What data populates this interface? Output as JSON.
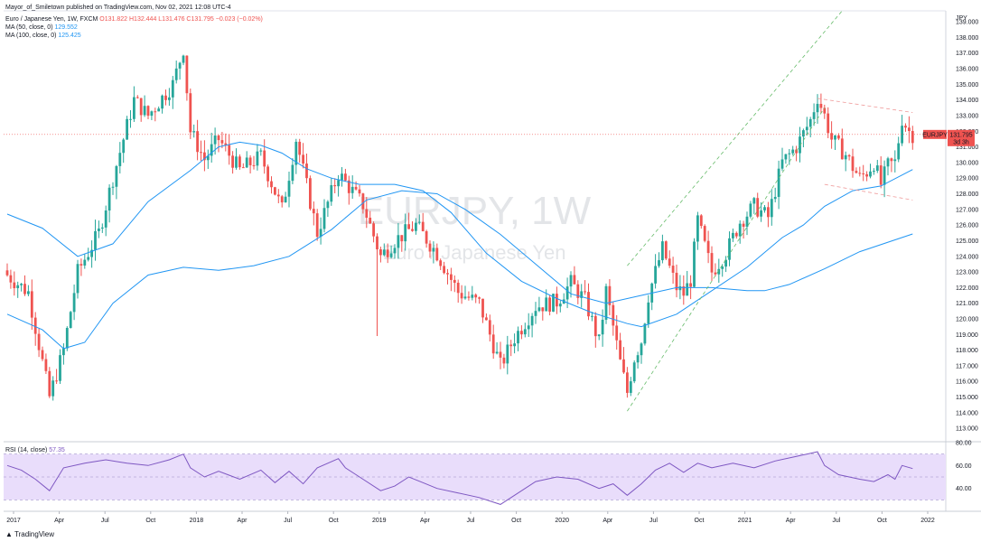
{
  "header": {
    "published": "Mayor_of_Smiletown published on TradingView.com, Nov 02, 2021 12:08 UTC-4",
    "symbol": "Euro / Japanese Yen, 1W, FXCM",
    "ohlc": "O131.822 H132.444 L131.476 C131.795 −0.023 (−0.02%)",
    "ma50_label": "MA (50, close, 0)",
    "ma50_value": "129.552",
    "ma100_label": "MA (100, close, 0)",
    "ma100_value": "125.425",
    "rsi_label": "RSI (14, close)",
    "rsi_value": "57.35"
  },
  "currency_label": "JPY",
  "watermark": {
    "symbol": "EURJPY, 1W",
    "name": "Euro / Japanese Yen"
  },
  "price_tag": {
    "symbol": "EURJPY",
    "price": "131.795",
    "countdown": "3d 3h"
  },
  "footer": "TradingView",
  "colors": {
    "up": "#26a69a",
    "down": "#ef5350",
    "ma50": "#2196f3",
    "ma100": "#2196f3",
    "rsi": "#7e57c2",
    "rsi_band": "#e9ddfb"
  },
  "chart_data": [
    {
      "type": "candlestick",
      "y_ticks": [
        "139.000",
        "138.000",
        "137.000",
        "136.000",
        "135.000",
        "134.000",
        "133.000",
        "132.000",
        "131.000",
        "130.000",
        "129.000",
        "128.000",
        "127.000",
        "126.000",
        "125.000",
        "124.000",
        "123.000",
        "122.000",
        "121.000",
        "120.000",
        "119.000",
        "118.000",
        "117.000",
        "116.000",
        "115.000",
        "114.000",
        "113.000"
      ],
      "x_ticks": [
        "2017",
        "Apr",
        "Jul",
        "Oct",
        "2018",
        "Apr",
        "Jul",
        "Oct",
        "2019",
        "Apr",
        "Jul",
        "Oct",
        "2020",
        "Apr",
        "Jul",
        "Oct",
        "2021",
        "Apr",
        "Jul",
        "Oct",
        "2022"
      ],
      "ylim": [
        112.2,
        139.7
      ],
      "closes": [
        [
          0,
          122.8
        ],
        [
          6,
          121.7
        ],
        [
          12,
          115.0
        ],
        [
          16,
          118.0
        ],
        [
          20,
          123.0
        ],
        [
          26,
          125.5
        ],
        [
          30,
          129.0
        ],
        [
          36,
          134.0
        ],
        [
          40,
          133.0
        ],
        [
          47,
          135.0
        ],
        [
          50,
          137.3
        ],
        [
          52,
          132.0
        ],
        [
          56,
          130.2
        ],
        [
          60,
          131.5
        ],
        [
          66,
          129.5
        ],
        [
          72,
          130.4
        ],
        [
          78,
          127.0
        ],
        [
          82,
          131.5
        ],
        [
          88,
          125.5
        ],
        [
          94,
          129.3
        ],
        [
          101,
          127.3
        ],
        [
          106,
          124.0
        ],
        [
          110,
          125.0
        ],
        [
          116,
          126.0
        ],
        [
          122,
          124.2
        ],
        [
          128,
          121.7
        ],
        [
          134,
          121.0
        ],
        [
          140,
          117.0
        ],
        [
          144,
          118.8
        ],
        [
          150,
          120.8
        ],
        [
          156,
          121.1
        ],
        [
          160,
          122.3
        ],
        [
          164,
          121.2
        ],
        [
          168,
          118.5
        ],
        [
          170,
          121.8
        ],
        [
          172,
          119.5
        ],
        [
          174,
          117.2
        ],
        [
          176,
          115.3
        ],
        [
          178,
          117.5
        ],
        [
          180,
          118.6
        ],
        [
          182,
          121.5
        ],
        [
          186,
          124.5
        ],
        [
          190,
          122.0
        ],
        [
          192,
          121.6
        ],
        [
          194,
          122.5
        ],
        [
          196,
          126.3
        ],
        [
          200,
          123.0
        ],
        [
          204,
          124.2
        ],
        [
          208,
          126.2
        ],
        [
          212,
          127.2
        ],
        [
          216,
          126.5
        ],
        [
          220,
          130.0
        ],
        [
          224,
          131.0
        ],
        [
          228,
          132.7
        ],
        [
          230,
          134.2
        ],
        [
          232,
          133.0
        ],
        [
          234,
          131.5
        ],
        [
          236,
          131.0
        ],
        [
          238,
          130.5
        ],
        [
          240,
          129.7
        ],
        [
          242,
          129.0
        ],
        [
          244,
          129.4
        ],
        [
          246,
          130.0
        ],
        [
          248,
          128.6
        ],
        [
          250,
          129.8
        ],
        [
          252,
          130.0
        ],
        [
          254,
          132.8
        ],
        [
          256,
          132.0
        ],
        [
          257,
          131.8
        ]
      ],
      "moving_averages": [
        {
          "name": "MA (50, close, 0)",
          "last": 129.552,
          "points": [
            [
              0,
              126.7
            ],
            [
              10,
              125.8
            ],
            [
              20,
              124.0
            ],
            [
              30,
              124.8
            ],
            [
              40,
              127.5
            ],
            [
              52,
              129.5
            ],
            [
              60,
              131.0
            ],
            [
              66,
              131.3
            ],
            [
              72,
              131.1
            ],
            [
              78,
              130.6
            ],
            [
              85,
              129.6
            ],
            [
              92,
              129.0
            ],
            [
              100,
              128.6
            ],
            [
              110,
              128.6
            ],
            [
              118,
              128.2
            ],
            [
              126,
              126.8
            ],
            [
              136,
              124.2
            ],
            [
              146,
              122.4
            ],
            [
              156,
              121.3
            ],
            [
              166,
              120.4
            ],
            [
              176,
              119.7
            ],
            [
              180,
              119.5
            ],
            [
              190,
              120.3
            ],
            [
              200,
              121.8
            ],
            [
              210,
              123.3
            ],
            [
              220,
              125.2
            ],
            [
              226,
              126.0
            ],
            [
              232,
              127.2
            ],
            [
              240,
              128.2
            ],
            [
              248,
              128.5
            ],
            [
              257,
              129.55
            ]
          ]
        },
        {
          "name": "MA (100, close, 0)",
          "last": 125.425,
          "points": [
            [
              0,
              120.3
            ],
            [
              10,
              119.3
            ],
            [
              16,
              118.1
            ],
            [
              22,
              118.5
            ],
            [
              30,
              121.0
            ],
            [
              40,
              122.8
            ],
            [
              50,
              123.3
            ],
            [
              60,
              123.1
            ],
            [
              70,
              123.4
            ],
            [
              80,
              124.0
            ],
            [
              92,
              125.7
            ],
            [
              102,
              127.6
            ],
            [
              112,
              128.2
            ],
            [
              122,
              128.0
            ],
            [
              130,
              127.0
            ],
            [
              140,
              125.4
            ],
            [
              150,
              123.5
            ],
            [
              160,
              121.6
            ],
            [
              170,
              121.0
            ],
            [
              180,
              121.5
            ],
            [
              190,
              122.0
            ],
            [
              200,
              122.0
            ],
            [
              210,
              121.8
            ],
            [
              215,
              121.8
            ],
            [
              222,
              122.2
            ],
            [
              232,
              123.2
            ],
            [
              242,
              124.3
            ],
            [
              257,
              125.43
            ]
          ]
        }
      ]
    },
    {
      "type": "line",
      "name": "RSI (14, close)",
      "ylim": [
        20,
        80
      ],
      "y_ticks": [
        "80.00",
        "60.00",
        "40.00"
      ],
      "band": [
        30,
        70
      ],
      "last": 57.35,
      "points": [
        [
          0,
          60
        ],
        [
          4,
          56
        ],
        [
          8,
          48
        ],
        [
          12,
          38
        ],
        [
          16,
          58
        ],
        [
          22,
          62
        ],
        [
          28,
          65
        ],
        [
          34,
          62
        ],
        [
          40,
          60
        ],
        [
          46,
          65
        ],
        [
          50,
          70
        ],
        [
          52,
          58
        ],
        [
          56,
          50
        ],
        [
          60,
          55
        ],
        [
          66,
          48
        ],
        [
          72,
          56
        ],
        [
          76,
          45
        ],
        [
          80,
          55
        ],
        [
          84,
          44
        ],
        [
          88,
          58
        ],
        [
          94,
          66
        ],
        [
          96,
          58
        ],
        [
          100,
          50
        ],
        [
          106,
          38
        ],
        [
          110,
          42
        ],
        [
          114,
          50
        ],
        [
          118,
          45
        ],
        [
          122,
          40
        ],
        [
          128,
          36
        ],
        [
          134,
          32
        ],
        [
          138,
          28
        ],
        [
          140,
          26
        ],
        [
          144,
          34
        ],
        [
          150,
          46
        ],
        [
          156,
          50
        ],
        [
          162,
          48
        ],
        [
          168,
          40
        ],
        [
          172,
          44
        ],
        [
          176,
          34
        ],
        [
          180,
          44
        ],
        [
          184,
          56
        ],
        [
          188,
          62
        ],
        [
          192,
          54
        ],
        [
          196,
          62
        ],
        [
          200,
          58
        ],
        [
          206,
          62
        ],
        [
          212,
          58
        ],
        [
          218,
          64
        ],
        [
          224,
          68
        ],
        [
          230,
          72
        ],
        [
          232,
          60
        ],
        [
          236,
          52
        ],
        [
          242,
          48
        ],
        [
          246,
          46
        ],
        [
          250,
          52
        ],
        [
          252,
          48
        ],
        [
          254,
          60
        ],
        [
          257,
          57.35
        ]
      ]
    }
  ]
}
